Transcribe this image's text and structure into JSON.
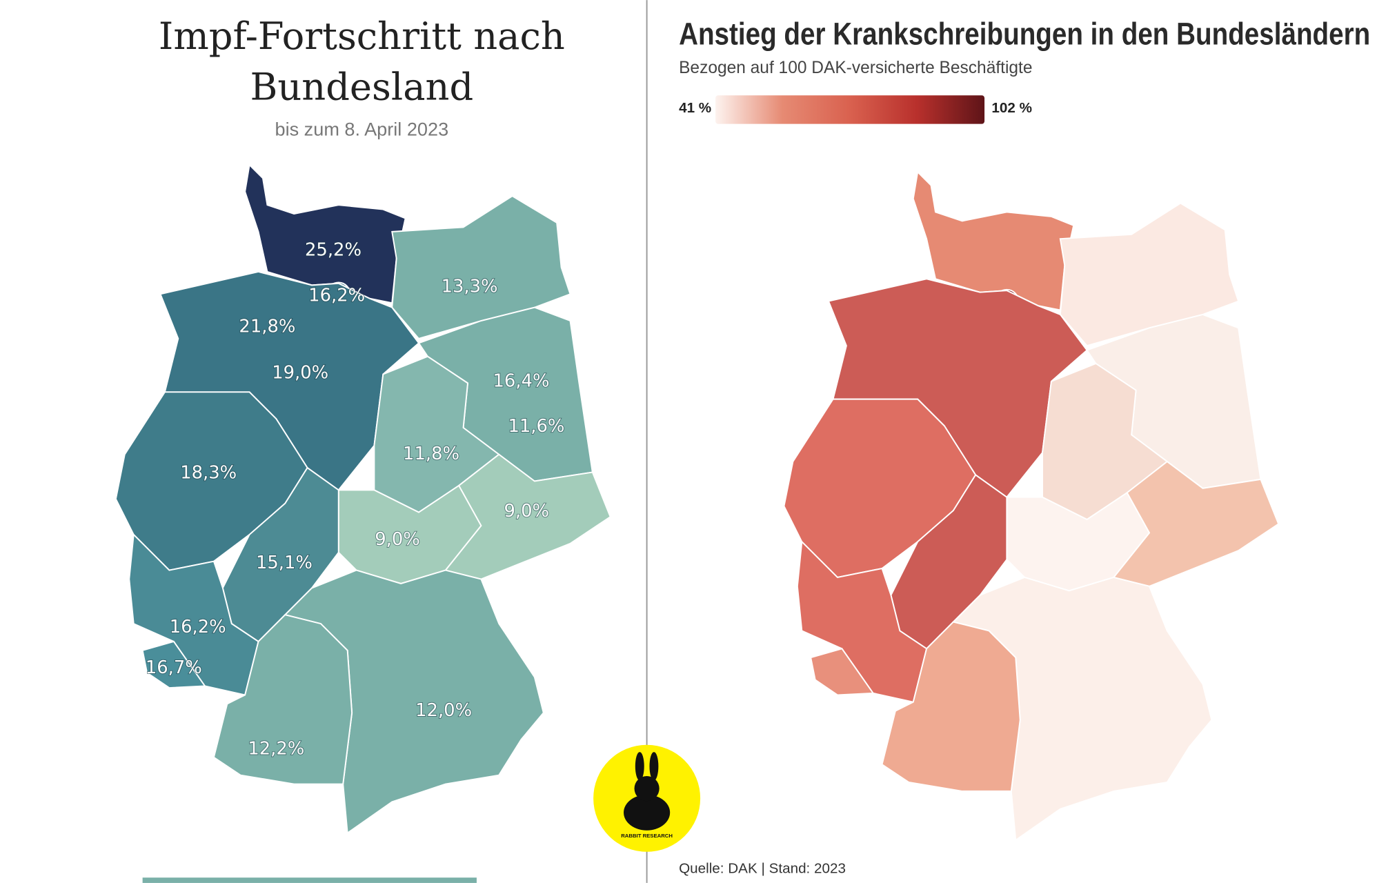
{
  "left": {
    "title_lines": [
      "Impf-Fortschritt nach",
      "Bundesland"
    ],
    "subtitle": "bis zum 8. April 2023",
    "regions": [
      {
        "color": "#22325a",
        "label": "25,2%"
      },
      {
        "color": "#3a7586",
        "label": "16,2%"
      },
      {
        "color": "#7ab0a8",
        "label": "13,3%"
      },
      {
        "color": "#3a7586",
        "label": "21,8%"
      },
      {
        "color": "#3a7586",
        "label": "19,0%"
      },
      {
        "color": "#7ab0a8",
        "label": "16,4%"
      },
      {
        "color": "#7ab0a8",
        "label": "11,6%"
      },
      {
        "color": "#84b7ae",
        "label": "11,8%"
      },
      {
        "color": "#3f7c8a",
        "label": "18,3%"
      },
      {
        "color": "#a3ccba",
        "label": "9,0%"
      },
      {
        "color": "#a3ccba",
        "label": "9,0%"
      },
      {
        "color": "#4d8b94",
        "label": "15,1%"
      },
      {
        "color": "#4a8b96",
        "label": "16,2%"
      },
      {
        "color": "#4a8e9a",
        "label": "16,7%"
      },
      {
        "color": "#7ab0a8",
        "label": "12,0%"
      },
      {
        "color": "#7ab0a8",
        "label": "12,2%"
      }
    ]
  },
  "right": {
    "title": "Anstieg der Krankschreibungen in den Bundesländern",
    "subtitle": "Bezogen auf 100 DAK-versicherte Beschäftigte",
    "legend": {
      "min_label": "41 %",
      "max_label": "102 %",
      "colors": [
        "#fdf3ef",
        "#e68a73",
        "#d9614f",
        "#b8302c",
        "#5e1418"
      ]
    },
    "regions": [
      {
        "color": "#e68a73"
      },
      {
        "color": "#8c2a30"
      },
      {
        "color": "#fbe9e2"
      },
      {
        "color": "#8c3a40"
      },
      {
        "color": "#cc5c56"
      },
      {
        "color": "#b84a4c"
      },
      {
        "color": "#faeee8"
      },
      {
        "color": "#f6ddd2"
      },
      {
        "color": "#de6e62"
      },
      {
        "color": "#f3c3ad"
      },
      {
        "color": "#fdf3ef"
      },
      {
        "color": "#cc5c56"
      },
      {
        "color": "#de6e62"
      },
      {
        "color": "#e8907c"
      },
      {
        "color": "#fcefe9"
      },
      {
        "color": "#efaa92"
      }
    ],
    "source": "Quelle: DAK | Stand: 2023"
  },
  "logo": {
    "text": "RABBIT RESEARCH"
  }
}
